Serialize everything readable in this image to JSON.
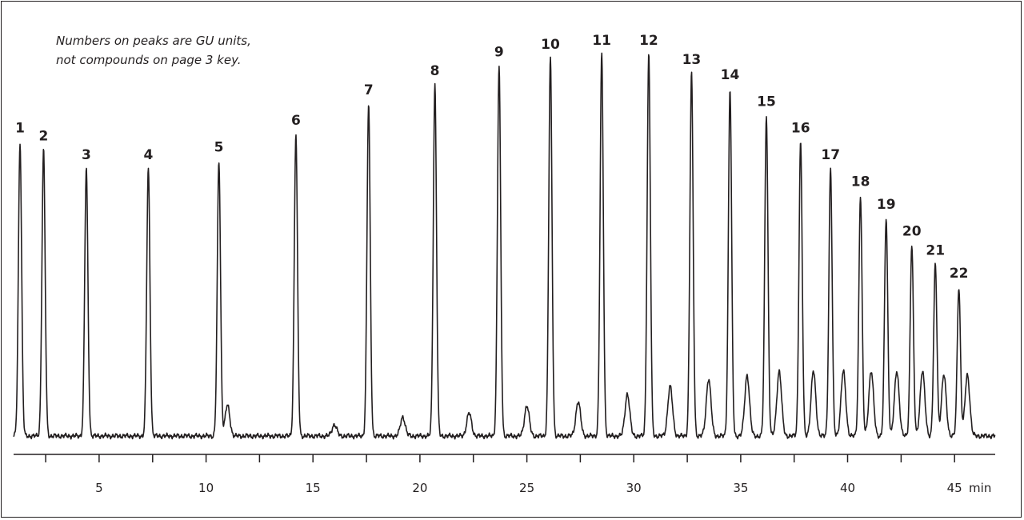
{
  "chart_data": {
    "type": "line",
    "annotation": [
      "Numbers on peaks are GU units,",
      "not compounds on page 3 key."
    ],
    "x_unit": "min",
    "x_ticks": [
      5,
      10,
      15,
      20,
      25,
      30,
      35,
      40,
      45
    ],
    "xlim": [
      1.0,
      46.9
    ],
    "ylim": [
      0,
      100
    ],
    "baseline": 0,
    "peaks": [
      {
        "label": "1",
        "x": 1.3,
        "y": 77
      },
      {
        "label": "2",
        "x": 2.4,
        "y": 75
      },
      {
        "label": "3",
        "x": 4.4,
        "y": 70
      },
      {
        "label": "4",
        "x": 7.3,
        "y": 70
      },
      {
        "label": "5",
        "x": 10.6,
        "y": 72
      },
      {
        "label": "6",
        "x": 14.2,
        "y": 79
      },
      {
        "label": "7",
        "x": 17.6,
        "y": 87
      },
      {
        "label": "8",
        "x": 20.7,
        "y": 92
      },
      {
        "label": "9",
        "x": 23.7,
        "y": 97
      },
      {
        "label": "10",
        "x": 26.1,
        "y": 99
      },
      {
        "label": "11",
        "x": 28.5,
        "y": 100
      },
      {
        "label": "12",
        "x": 30.7,
        "y": 100
      },
      {
        "label": "13",
        "x": 32.7,
        "y": 95
      },
      {
        "label": "14",
        "x": 34.5,
        "y": 91
      },
      {
        "label": "15",
        "x": 36.2,
        "y": 84
      },
      {
        "label": "16",
        "x": 37.8,
        "y": 77
      },
      {
        "label": "17",
        "x": 39.2,
        "y": 70
      },
      {
        "label": "18",
        "x": 40.6,
        "y": 63
      },
      {
        "label": "19",
        "x": 41.8,
        "y": 57
      },
      {
        "label": "20",
        "x": 43.0,
        "y": 50
      },
      {
        "label": "21",
        "x": 44.1,
        "y": 45
      },
      {
        "label": "22",
        "x": 45.2,
        "y": 39
      }
    ],
    "minor_peaks": [
      {
        "x": 11.0,
        "y": 8
      },
      {
        "x": 16.0,
        "y": 3
      },
      {
        "x": 19.2,
        "y": 5
      },
      {
        "x": 22.3,
        "y": 6
      },
      {
        "x": 25.0,
        "y": 8
      },
      {
        "x": 27.4,
        "y": 9
      },
      {
        "x": 29.7,
        "y": 11
      },
      {
        "x": 31.7,
        "y": 13
      },
      {
        "x": 33.5,
        "y": 15
      },
      {
        "x": 35.3,
        "y": 16
      },
      {
        "x": 36.8,
        "y": 17
      },
      {
        "x": 38.4,
        "y": 17
      },
      {
        "x": 39.8,
        "y": 17
      },
      {
        "x": 41.1,
        "y": 17
      },
      {
        "x": 42.3,
        "y": 17
      },
      {
        "x": 43.5,
        "y": 17
      },
      {
        "x": 44.5,
        "y": 16
      },
      {
        "x": 45.6,
        "y": 16
      }
    ]
  }
}
